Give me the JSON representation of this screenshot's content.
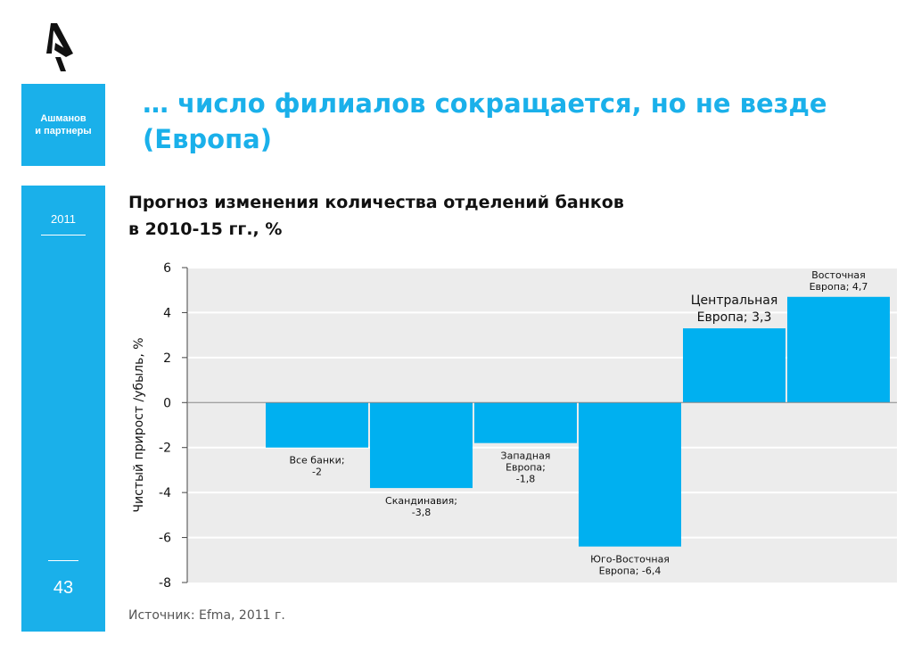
{
  "brand": {
    "name_line1": "Ашманов",
    "name_line2": "и партнеры"
  },
  "sidebar": {
    "year": "2011",
    "page_number": "43"
  },
  "headline": {
    "line1": "… число филиалов сокращается, но не везде",
    "line2": "(Европа)"
  },
  "colors": {
    "accent": "#1ab0ea",
    "bar": "#00b0f0",
    "plot_bg": "#ececec"
  },
  "chart_data": {
    "type": "bar",
    "title_line1": "Прогноз изменения количества отделений банков",
    "title_line2": "в 2010-15 гг., %",
    "ylabel": "Чистый прирост /убыль, %",
    "ylim": [
      -8,
      6
    ],
    "yticks": [
      "6",
      "4",
      "2",
      "0",
      "-2",
      "-4",
      "-6",
      "-8"
    ],
    "grid": true,
    "categories": [
      "Все банки",
      "Скандинавия",
      "Западная Европа",
      "Юго-Восточная Европа",
      "Центральная Европа",
      "Восточная Европа"
    ],
    "values": [
      -2,
      -3.8,
      -1.8,
      -6.4,
      3.3,
      4.7
    ],
    "data_labels": [
      [
        "Все банки;",
        "-2"
      ],
      [
        "Скандинавия;",
        "-3,8"
      ],
      [
        "Западная",
        "Европа;",
        "-1,8"
      ],
      [
        "Юго-Восточная",
        "Европа; -6,4"
      ],
      [
        "Центральная",
        "Европа; 3,3"
      ],
      [
        "Восточная",
        "Европа; 4,7"
      ]
    ],
    "source": "Источник: Efma, 2011 г."
  }
}
